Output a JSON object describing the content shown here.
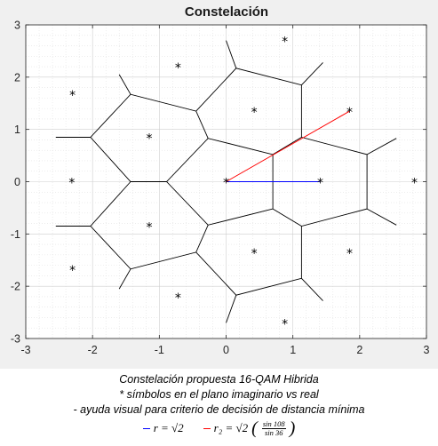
{
  "chart_data": {
    "type": "scatter",
    "title": "Constelación",
    "xlim": [
      -3,
      3
    ],
    "ylim": [
      -3,
      3
    ],
    "xticks": [
      "-3",
      "-2",
      "-1",
      "0",
      "1",
      "2",
      "3"
    ],
    "yticks": [
      "3",
      "2",
      "1",
      "0",
      "-1",
      "-2",
      "-3"
    ],
    "grid": "minor dotted",
    "marker": "*",
    "points": [
      {
        "x": 0,
        "y": 0
      },
      {
        "x": 1.41,
        "y": 0
      },
      {
        "x": 0.42,
        "y": 1.35
      },
      {
        "x": 0.42,
        "y": -1.35
      },
      {
        "x": -1.15,
        "y": 0.85
      },
      {
        "x": -1.15,
        "y": -0.85
      },
      {
        "x": 0.88,
        "y": 2.7
      },
      {
        "x": 0.88,
        "y": -2.7
      },
      {
        "x": 1.85,
        "y": 1.35
      },
      {
        "x": 1.85,
        "y": -1.35
      },
      {
        "x": -0.72,
        "y": 2.2
      },
      {
        "x": -0.72,
        "y": -2.2
      },
      {
        "x": -2.3,
        "y": 1.67
      },
      {
        "x": -2.3,
        "y": -1.67
      },
      {
        "x": -2.31,
        "y": 0
      },
      {
        "x": 2.82,
        "y": 0
      }
    ],
    "boundaries": [
      [
        [
          0.7,
          0.52
        ],
        [
          1.13,
          0.85
        ],
        [
          2.11,
          0.52
        ],
        [
          2.11,
          -0.52
        ],
        [
          1.13,
          -0.85
        ],
        [
          0.7,
          -0.52
        ],
        [
          0.7,
          0.52
        ]
      ],
      [
        [
          0.7,
          0.52
        ],
        [
          -0.27,
          0.83
        ],
        [
          -0.89,
          0
        ],
        [
          -0.27,
          -0.83
        ],
        [
          0.7,
          -0.52
        ]
      ],
      [
        [
          -0.27,
          0.83
        ],
        [
          -0.45,
          1.35
        ],
        [
          -1.43,
          1.67
        ],
        [
          -2.03,
          0.85
        ],
        [
          -1.43,
          0
        ],
        [
          -0.89,
          0
        ]
      ],
      [
        [
          -0.27,
          -0.83
        ],
        [
          -0.45,
          -1.35
        ],
        [
          -1.43,
          -1.67
        ],
        [
          -2.03,
          -0.85
        ],
        [
          -1.43,
          0
        ]
      ],
      [
        [
          -0.45,
          1.35
        ],
        [
          0.15,
          2.17
        ],
        [
          1.13,
          1.85
        ],
        [
          1.13,
          0.85
        ]
      ],
      [
        [
          -0.45,
          -1.35
        ],
        [
          0.15,
          -2.17
        ],
        [
          1.13,
          -1.85
        ],
        [
          1.13,
          -0.85
        ]
      ],
      [
        [
          0.15,
          2.17
        ],
        [
          0,
          2.7
        ]
      ],
      [
        [
          1.13,
          1.85
        ],
        [
          1.45,
          2.28
        ]
      ],
      [
        [
          0.15,
          -2.17
        ],
        [
          0,
          -2.7
        ]
      ],
      [
        [
          1.13,
          -1.85
        ],
        [
          1.45,
          -2.28
        ]
      ],
      [
        [
          2.11,
          0.52
        ],
        [
          2.55,
          0.83
        ]
      ],
      [
        [
          2.11,
          -0.52
        ],
        [
          2.55,
          -0.83
        ]
      ],
      [
        [
          -2.03,
          0.85
        ],
        [
          -2.55,
          0.85
        ]
      ],
      [
        [
          -2.03,
          -0.85
        ],
        [
          -2.55,
          -0.85
        ]
      ],
      [
        [
          -1.43,
          1.67
        ],
        [
          -1.6,
          2.05
        ]
      ],
      [
        [
          -1.43,
          -1.67
        ],
        [
          -1.6,
          -2.05
        ]
      ]
    ],
    "aids": [
      {
        "color": "#0000ff",
        "from": [
          0,
          0
        ],
        "to": [
          1.41,
          0
        ]
      },
      {
        "color": "#ff0000",
        "from": [
          0,
          0
        ],
        "to": [
          1.85,
          1.35
        ]
      }
    ],
    "colors": {
      "boundary": "#000000",
      "r": "#0000ff",
      "r2": "#ff0000",
      "axes_bg": "#ffffff",
      "figure_bg": "#f0f0f0"
    }
  },
  "caption": {
    "line1": "Constelación propuesta 16-QAM Hibrida",
    "line2": "* símbolos en el plano imaginario vs real",
    "line3": "- ayuda visual para criterio de decisión de distancia mínima",
    "legend_r_label": "r = √2",
    "legend_r2_label": "r₂ = √2",
    "frac_num": "sin 108",
    "frac_den": "sin 36"
  }
}
